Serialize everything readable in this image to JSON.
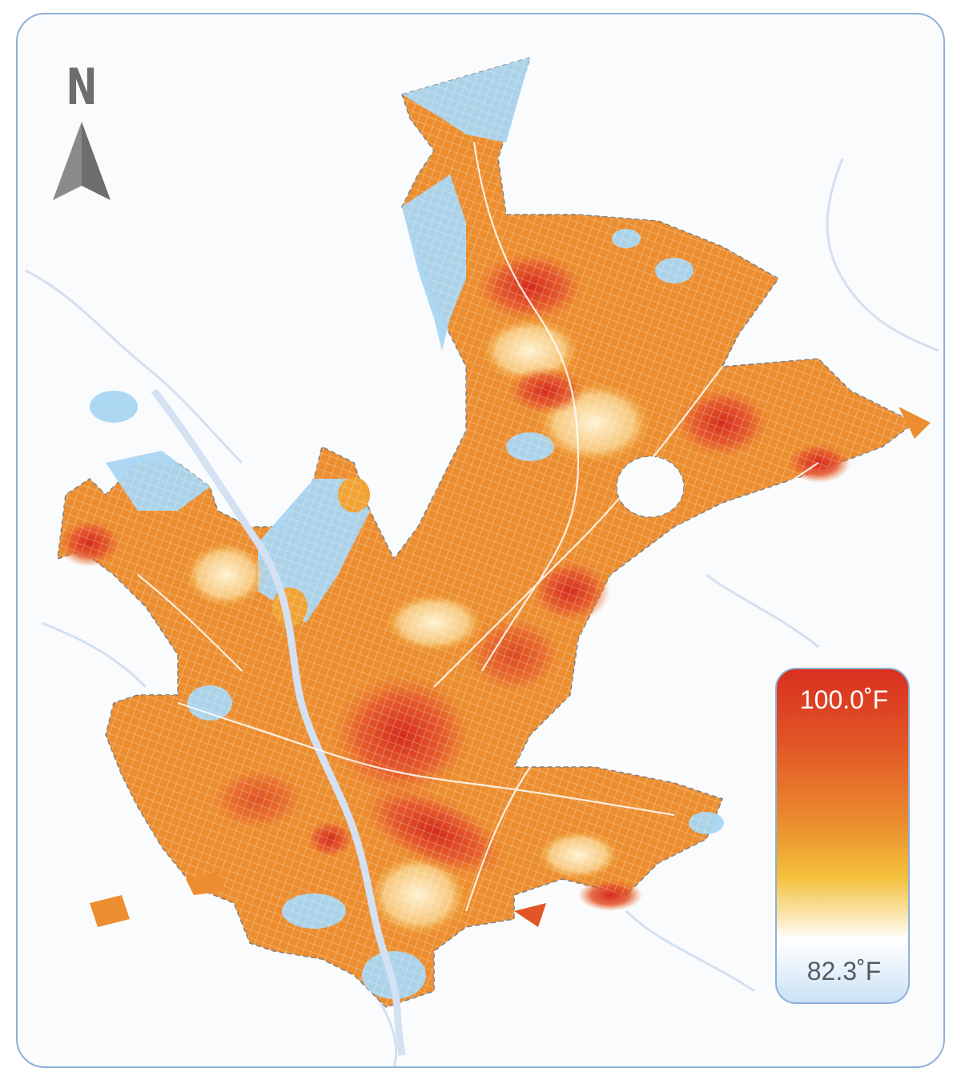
{
  "map": {
    "compass_letter": "N",
    "compass_icon": "north-arrow-icon",
    "colors": {
      "hot": "#d9301f",
      "warm": "#e86a2a",
      "mid": "#f0a233",
      "cool": "#fbe7b0",
      "cold": "#a9d6f2",
      "roads": "#ffffff",
      "water": "#c7d8ee",
      "boundary": "#7a7f87"
    }
  },
  "legend": {
    "max_label": "100.0˚F",
    "min_label": "82.3˚F",
    "max_value": 100.0,
    "min_value": 82.3,
    "unit": "˚F"
  }
}
